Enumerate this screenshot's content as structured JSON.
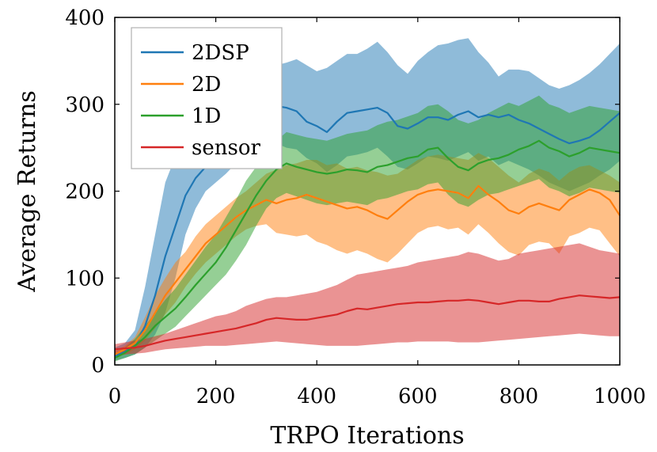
{
  "chart_data": {
    "type": "line",
    "title": "",
    "xlabel": "TRPO Iterations",
    "ylabel": "Average Returns",
    "xlim": [
      0,
      1000
    ],
    "ylim": [
      0,
      400
    ],
    "xticks": [
      "0",
      "200",
      "400",
      "600",
      "800",
      "1000"
    ],
    "yticks": [
      "0",
      "100",
      "200",
      "300",
      "400"
    ],
    "legend_position": "top-left",
    "grid": false,
    "x": [
      0,
      20,
      40,
      60,
      80,
      100,
      120,
      140,
      160,
      180,
      200,
      220,
      240,
      260,
      280,
      300,
      320,
      340,
      360,
      380,
      400,
      420,
      440,
      460,
      480,
      500,
      520,
      540,
      560,
      580,
      600,
      620,
      640,
      660,
      680,
      700,
      720,
      740,
      760,
      780,
      800,
      820,
      840,
      860,
      880,
      900,
      920,
      940,
      960,
      980,
      1000
    ],
    "series": [
      {
        "name": "2DSP",
        "color": "#1f77b4",
        "mean": [
          10,
          15,
          22,
          45,
          80,
          125,
          160,
          195,
          215,
          228,
          240,
          255,
          270,
          282,
          290,
          296,
          298,
          296,
          292,
          280,
          275,
          268,
          280,
          290,
          292,
          294,
          296,
          290,
          275,
          272,
          278,
          285,
          285,
          282,
          288,
          292,
          285,
          288,
          285,
          288,
          282,
          278,
          272,
          266,
          260,
          255,
          258,
          262,
          270,
          280,
          290
        ],
        "upper": [
          20,
          25,
          40,
          90,
          150,
          210,
          240,
          262,
          275,
          285,
          295,
          305,
          318,
          328,
          335,
          340,
          345,
          348,
          352,
          345,
          338,
          342,
          350,
          358,
          358,
          364,
          372,
          360,
          345,
          335,
          350,
          360,
          368,
          370,
          374,
          376,
          360,
          348,
          332,
          340,
          340,
          338,
          330,
          322,
          318,
          322,
          328,
          336,
          346,
          358,
          370
        ],
        "lower": [
          5,
          8,
          12,
          20,
          35,
          60,
          100,
          150,
          180,
          200,
          210,
          220,
          232,
          245,
          252,
          258,
          255,
          250,
          248,
          238,
          232,
          222,
          230,
          240,
          242,
          245,
          250,
          240,
          228,
          225,
          232,
          240,
          238,
          235,
          240,
          245,
          235,
          240,
          230,
          235,
          230,
          225,
          218,
          210,
          205,
          200,
          205,
          210,
          218,
          225,
          235
        ]
      },
      {
        "name": "2D",
        "color": "#ff7f0e",
        "mean": [
          12,
          18,
          25,
          40,
          60,
          80,
          95,
          110,
          125,
          140,
          150,
          160,
          170,
          178,
          184,
          190,
          186,
          190,
          192,
          196,
          192,
          188,
          184,
          180,
          182,
          178,
          172,
          168,
          178,
          188,
          196,
          200,
          202,
          200,
          198,
          192,
          206,
          196,
          188,
          178,
          174,
          182,
          186,
          182,
          178,
          190,
          196,
          202,
          198,
          190,
          172
        ],
        "upper": [
          16,
          22,
          32,
          55,
          80,
          100,
          118,
          130,
          148,
          162,
          172,
          182,
          192,
          200,
          210,
          220,
          225,
          230,
          232,
          236,
          236,
          230,
          232,
          226,
          228,
          224,
          222,
          218,
          220,
          228,
          236,
          240,
          242,
          240,
          238,
          236,
          244,
          238,
          228,
          218,
          210,
          220,
          226,
          222,
          212,
          222,
          228,
          230,
          224,
          218,
          210
        ],
        "lower": [
          8,
          12,
          18,
          28,
          42,
          58,
          72,
          90,
          105,
          118,
          128,
          138,
          148,
          156,
          160,
          162,
          152,
          150,
          148,
          150,
          142,
          138,
          132,
          128,
          132,
          128,
          122,
          118,
          128,
          140,
          152,
          158,
          160,
          156,
          158,
          150,
          162,
          152,
          140,
          130,
          126,
          138,
          142,
          140,
          128,
          148,
          152,
          158,
          155,
          140,
          125
        ]
      },
      {
        "name": "1D",
        "color": "#2ca02c",
        "mean": [
          8,
          14,
          22,
          32,
          45,
          55,
          65,
          78,
          92,
          105,
          118,
          135,
          155,
          175,
          195,
          212,
          225,
          232,
          228,
          225,
          222,
          220,
          222,
          225,
          224,
          222,
          228,
          230,
          234,
          238,
          240,
          248,
          250,
          238,
          228,
          224,
          232,
          236,
          238,
          242,
          248,
          252,
          258,
          250,
          246,
          240,
          244,
          250,
          248,
          246,
          244
        ],
        "upper": [
          12,
          20,
          30,
          45,
          60,
          75,
          88,
          104,
          120,
          136,
          150,
          170,
          190,
          212,
          228,
          242,
          258,
          268,
          265,
          262,
          260,
          258,
          262,
          266,
          268,
          270,
          276,
          280,
          282,
          286,
          290,
          298,
          300,
          292,
          282,
          278,
          282,
          290,
          296,
          302,
          298,
          304,
          310,
          300,
          296,
          290,
          294,
          298,
          296,
          294,
          292
        ],
        "lower": [
          4,
          8,
          12,
          20,
          28,
          36,
          44,
          56,
          68,
          80,
          92,
          104,
          120,
          138,
          160,
          180,
          192,
          198,
          194,
          190,
          186,
          184,
          186,
          188,
          186,
          184,
          190,
          192,
          196,
          200,
          202,
          208,
          210,
          196,
          186,
          182,
          190,
          196,
          198,
          202,
          206,
          210,
          214,
          204,
          200,
          194,
          198,
          204,
          202,
          200,
          198
        ]
      },
      {
        "name": "sensor",
        "color": "#d62728",
        "mean": [
          18,
          19,
          20,
          22,
          25,
          28,
          30,
          32,
          34,
          36,
          38,
          40,
          42,
          45,
          48,
          52,
          54,
          53,
          52,
          52,
          54,
          56,
          58,
          62,
          65,
          64,
          66,
          68,
          70,
          71,
          72,
          72,
          73,
          74,
          74,
          75,
          74,
          72,
          70,
          72,
          74,
          74,
          73,
          73,
          76,
          78,
          80,
          79,
          78,
          77,
          78
        ],
        "upper": [
          24,
          26,
          28,
          30,
          33,
          36,
          40,
          44,
          48,
          52,
          56,
          58,
          62,
          68,
          72,
          76,
          78,
          78,
          80,
          82,
          84,
          88,
          92,
          98,
          104,
          106,
          108,
          110,
          112,
          114,
          118,
          120,
          122,
          124,
          126,
          130,
          128,
          124,
          120,
          122,
          128,
          130,
          132,
          134,
          136,
          138,
          140,
          136,
          132,
          130,
          128
        ],
        "lower": [
          10,
          12,
          13,
          14,
          16,
          18,
          19,
          20,
          21,
          22,
          22,
          22,
          23,
          24,
          25,
          26,
          27,
          26,
          25,
          24,
          23,
          22,
          22,
          22,
          22,
          23,
          24,
          25,
          26,
          26,
          27,
          27,
          27,
          27,
          26,
          26,
          26,
          27,
          28,
          29,
          30,
          31,
          32,
          33,
          34,
          35,
          36,
          35,
          34,
          33,
          33
        ]
      }
    ]
  }
}
